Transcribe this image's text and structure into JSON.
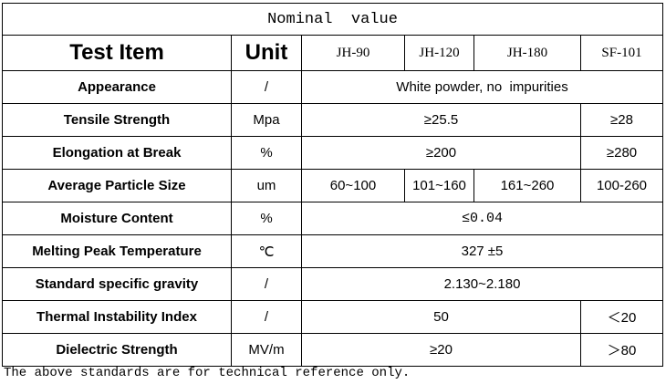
{
  "table": {
    "title": "Nominal  value",
    "header": [
      "Test Item",
      "Unit",
      "JH-90",
      "JH-120",
      "JH-180",
      "SF-101"
    ],
    "rows": [
      [
        "Appearance",
        "/",
        "White powder, no  impurities"
      ],
      [
        "Tensile Strength",
        "Mpa",
        "≥25.5",
        "≥28"
      ],
      [
        "Elongation at Break",
        "%",
        "≥200",
        "≥280"
      ],
      [
        "Average Particle Size",
        "um",
        "60~100",
        "101~160",
        "161~260",
        "100-260"
      ],
      [
        "Moisture Content",
        "%",
        "≤0.04"
      ],
      [
        "Melting Peak Temperature",
        "℃",
        "327 ±5"
      ],
      [
        "Standard specific gravity",
        "/",
        "2.130~2.180"
      ],
      [
        "Thermal Instability Index",
        "/",
        "50",
        "＜20"
      ],
      [
        "Dielectric Strength",
        "MV/m",
        "≥20",
        "＞80"
      ]
    ]
  },
  "footer": "The above standards are for technical reference only."
}
